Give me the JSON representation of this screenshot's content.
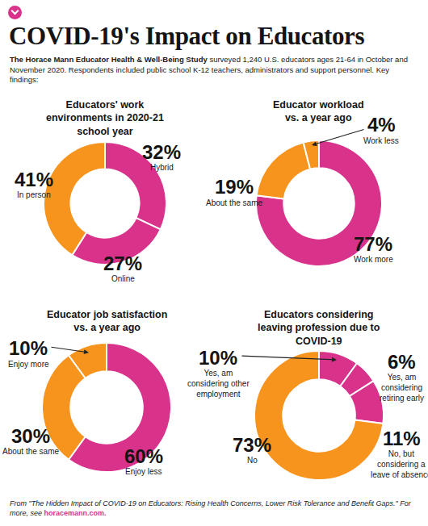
{
  "page": {
    "title": "COVID-19's Impact on Educators",
    "subtitle_bold": "The Horace Mann Educator Health & Well-Being Study",
    "subtitle": "surveyed 1,240 U.S. educators ages 21-64 in October and November 2020. Respondents included public school K-12 teachers, administrators and support personnel. Key findings:",
    "source": "From \"The Hidden Impact of COVID-19 on Educators: Rising Health Concerns, Lower Risk Tolerance and Benefit Gaps.\"",
    "more": "For more, see",
    "link": "horacemann.com."
  },
  "chart_data": [
    {
      "type": "donut",
      "title": "Educators' work environments in 2020-21 school year",
      "categories": [
        "Hybrid",
        "Online",
        "In person"
      ],
      "values": [
        32,
        27,
        41
      ],
      "value_labels": [
        "32%",
        "27%",
        "41%"
      ],
      "colors": [
        "#d9328b",
        "#d9328b",
        "#f7941e"
      ],
      "data_labels": true
    },
    {
      "type": "donut",
      "title": "Educator workload vs. a year ago",
      "categories": [
        "Work more",
        "About the same",
        "Work less"
      ],
      "values": [
        77,
        19,
        4
      ],
      "value_labels": [
        "77%",
        "19%",
        "4%"
      ],
      "colors": [
        "#d9328b",
        "#f7941e",
        "#f7941e"
      ],
      "data_labels": true
    },
    {
      "type": "donut",
      "title": "Educator job satisfaction vs. a year ago",
      "categories": [
        "Enjoy less",
        "About the same",
        "Enjoy more"
      ],
      "values": [
        60,
        30,
        10
      ],
      "value_labels": [
        "60%",
        "30%",
        "10%"
      ],
      "colors": [
        "#d9328b",
        "#f7941e",
        "#f7941e"
      ],
      "data_labels": true
    },
    {
      "type": "donut",
      "title": "Educators considering leaving profession due to COVID-19",
      "categories": [
        "Yes, am considering other employment",
        "Yes, am considering retiring early",
        "No, but considering a leave of absence",
        "No"
      ],
      "values": [
        10,
        6,
        11,
        73
      ],
      "value_labels": [
        "10%",
        "6%",
        "11%",
        "73%"
      ],
      "colors": [
        "#d9328b",
        "#d9328b",
        "#d9328b",
        "#f7941e"
      ],
      "data_labels": true
    }
  ]
}
